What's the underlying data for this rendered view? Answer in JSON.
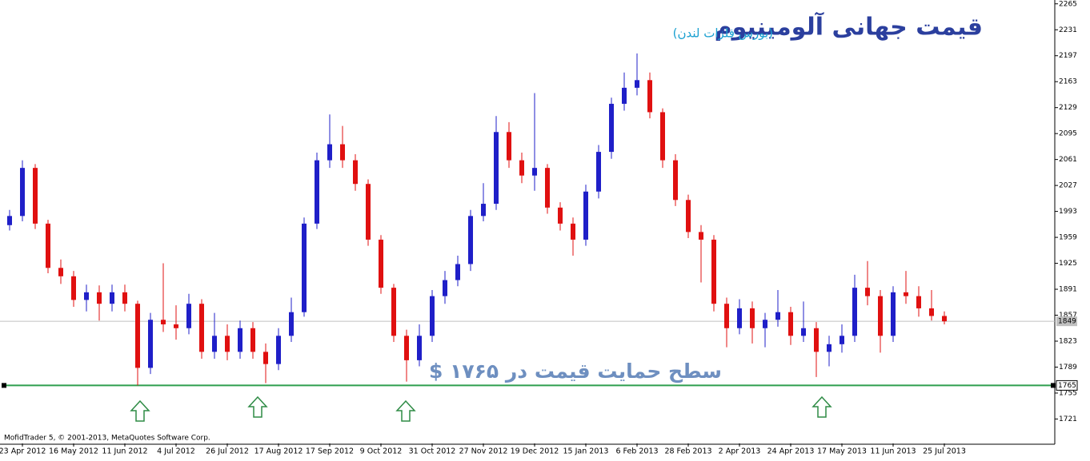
{
  "chart_data": {
    "type": "candlestick",
    "title": "قیمت جهانی آلومینیوم",
    "subtitle": "(بورس فلزات لندن)",
    "annotation": "سطح حمایت قیمت در ۱۷۶۵ $",
    "footer": "MofidTrader 5, © 2001-2013, MetaQuotes Software Corp.",
    "categories": [
      null,
      "23 Apr 2012",
      null,
      null,
      null,
      "16 May 2012",
      null,
      null,
      null,
      "11 Jun 2012",
      null,
      null,
      null,
      "4 Jul 2012",
      null,
      null,
      null,
      "26 Jul 2012",
      null,
      null,
      null,
      "17 Aug 2012",
      null,
      null,
      null,
      "17 Sep 2012",
      null,
      null,
      null,
      "9 Oct 2012",
      null,
      null,
      null,
      "31 Oct 2012",
      null,
      null,
      null,
      "27 Nov 2012",
      null,
      null,
      null,
      "19 Dec 2012",
      null,
      null,
      null,
      "15 Jan 2013",
      null,
      null,
      null,
      "6 Feb 2013",
      null,
      null,
      null,
      "28 Feb 2013",
      null,
      null,
      null,
      "2 Apr 2013",
      null,
      null,
      null,
      "24 Apr 2013",
      null,
      null,
      null,
      "17 May 2013",
      null,
      null,
      null,
      "11 Jun 2013",
      null,
      null,
      null,
      "25 Jul 2013"
    ],
    "open": [
      1975,
      1987,
      2050,
      1977,
      1919,
      1908,
      1877,
      1887,
      1872,
      1887,
      1872,
      1788,
      1851,
      1845,
      1840,
      1872,
      1809,
      1830,
      1809,
      1840,
      1809,
      1793,
      1830,
      1861,
      1977,
      2060,
      2081,
      2060,
      2029,
      1956,
      1893,
      1830,
      1798,
      1830,
      1882,
      1903,
      1924,
      1987,
      2003,
      2097,
      2060,
      2040,
      2050,
      1998,
      1977,
      1956,
      2019,
      2071,
      2134,
      2155,
      2165,
      2123,
      2060,
      2008,
      1966,
      1956,
      1872,
      1840,
      1866,
      1840,
      1851,
      1861,
      1830,
      1840,
      1809,
      1819,
      1830,
      1893,
      1882,
      1830,
      1887,
      1882,
      1866,
      1856
    ],
    "high": [
      1995,
      2060,
      2055,
      1982,
      1930,
      1915,
      1897,
      1896,
      1897,
      1897,
      1876,
      1860,
      1925,
      1870,
      1885,
      1878,
      1860,
      1845,
      1850,
      1848,
      1820,
      1840,
      1880,
      1985,
      2070,
      2120,
      2105,
      2068,
      2035,
      1962,
      1898,
      1838,
      1845,
      1890,
      1915,
      1935,
      1995,
      2030,
      2118,
      2110,
      2070,
      2148,
      2055,
      2005,
      1985,
      2028,
      2080,
      2142,
      2175,
      2200,
      2175,
      2128,
      2068,
      2015,
      1975,
      1962,
      1880,
      1878,
      1875,
      1860,
      1890,
      1868,
      1875,
      1848,
      1830,
      1845,
      1910,
      1928,
      1890,
      1895,
      1915,
      1895,
      1890,
      1862
    ],
    "low": [
      1968,
      1980,
      1970,
      1912,
      1898,
      1868,
      1862,
      1850,
      1862,
      1862,
      1765,
      1780,
      1835,
      1825,
      1832,
      1800,
      1800,
      1798,
      1800,
      1800,
      1768,
      1785,
      1822,
      1855,
      1970,
      2050,
      2050,
      2020,
      1948,
      1885,
      1822,
      1770,
      1790,
      1822,
      1872,
      1895,
      1915,
      1980,
      1995,
      2050,
      2030,
      2020,
      1990,
      1968,
      1935,
      1948,
      2010,
      2062,
      2125,
      2145,
      2115,
      2050,
      2000,
      1958,
      1900,
      1862,
      1815,
      1832,
      1820,
      1815,
      1842,
      1818,
      1822,
      1776,
      1790,
      1808,
      1822,
      1870,
      1808,
      1822,
      1872,
      1855,
      1850,
      1845
    ],
    "close": [
      1987,
      2050,
      1977,
      1919,
      1908,
      1877,
      1887,
      1872,
      1887,
      1872,
      1788,
      1851,
      1845,
      1840,
      1872,
      1809,
      1830,
      1809,
      1840,
      1809,
      1793,
      1830,
      1861,
      1977,
      2060,
      2081,
      2060,
      2029,
      1956,
      1893,
      1830,
      1798,
      1830,
      1882,
      1903,
      1924,
      1987,
      2003,
      2097,
      2060,
      2040,
      2050,
      1998,
      1977,
      1956,
      2019,
      2071,
      2134,
      2155,
      2165,
      2123,
      2060,
      2008,
      1966,
      1956,
      1872,
      1840,
      1866,
      1840,
      1851,
      1861,
      1830,
      1840,
      1809,
      1819,
      1830,
      1893,
      1882,
      1830,
      1887,
      1882,
      1866,
      1856,
      1849
    ],
    "up_color": "#1f1fc8",
    "down_color": "#e01010",
    "ylim": [
      1689,
      2270
    ],
    "yticks": [
      2265,
      2231,
      2197,
      2163,
      2129,
      2095,
      2061,
      2027,
      1993,
      1959,
      1925,
      1891,
      1857,
      1823,
      1789,
      1755,
      1721
    ],
    "current_price": 1849,
    "support_level": 1765,
    "support_color": "#2e9e4e"
  }
}
